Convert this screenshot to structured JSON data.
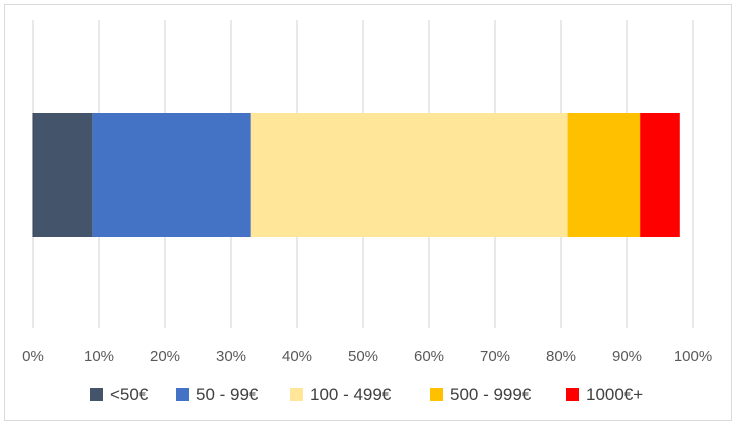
{
  "chart_data": {
    "type": "bar",
    "orientation": "horizontal",
    "stacked": "100%",
    "categories": [
      ""
    ],
    "series": [
      {
        "name": "<50€",
        "values": [
          9
        ],
        "color": "#44546a"
      },
      {
        "name": "50 - 99€",
        "values": [
          24
        ],
        "color": "#4472c4"
      },
      {
        "name": "100 - 499€",
        "values": [
          48
        ],
        "color": "#ffe699"
      },
      {
        "name": "500 - 999€",
        "values": [
          11
        ],
        "color": "#ffc000"
      },
      {
        "name": "1000€+",
        "values": [
          6
        ],
        "color": "#ff0000"
      }
    ],
    "xlim": [
      0,
      100
    ],
    "x_ticks": [
      "0%",
      "10%",
      "20%",
      "30%",
      "40%",
      "50%",
      "60%",
      "70%",
      "80%",
      "90%",
      "100%"
    ],
    "title": "",
    "xlabel": "",
    "ylabel": "",
    "grid": true,
    "grid_color": "#d9d9d9",
    "legend": "bottom"
  }
}
